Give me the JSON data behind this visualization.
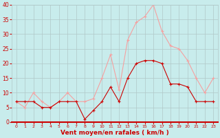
{
  "hours": [
    0,
    1,
    2,
    3,
    4,
    5,
    6,
    7,
    8,
    9,
    10,
    11,
    12,
    13,
    14,
    15,
    16,
    17,
    18,
    19,
    20,
    21,
    22,
    23
  ],
  "wind_avg": [
    7,
    7,
    7,
    5,
    5,
    7,
    7,
    7,
    1,
    4,
    7,
    12,
    7,
    15,
    20,
    21,
    21,
    20,
    13,
    13,
    12,
    7,
    7,
    7
  ],
  "wind_gust": [
    7,
    5,
    10,
    7,
    5,
    7,
    10,
    7,
    7,
    8,
    15,
    23,
    11,
    28,
    34,
    36,
    40,
    31,
    26,
    25,
    21,
    15,
    10,
    15
  ],
  "color_avg": "#cc0000",
  "color_gust": "#f5a0a0",
  "bg_color": "#c8ecec",
  "grid_color": "#b0c8c8",
  "xlabel": "Vent moyen/en rafales ( km/h )",
  "xlabel_color": "#cc0000",
  "tick_color": "#cc0000",
  "ylim": [
    0,
    40
  ],
  "yticks": [
    0,
    5,
    10,
    15,
    20,
    25,
    30,
    35,
    40
  ],
  "xlim": [
    -0.5,
    23.5
  ]
}
